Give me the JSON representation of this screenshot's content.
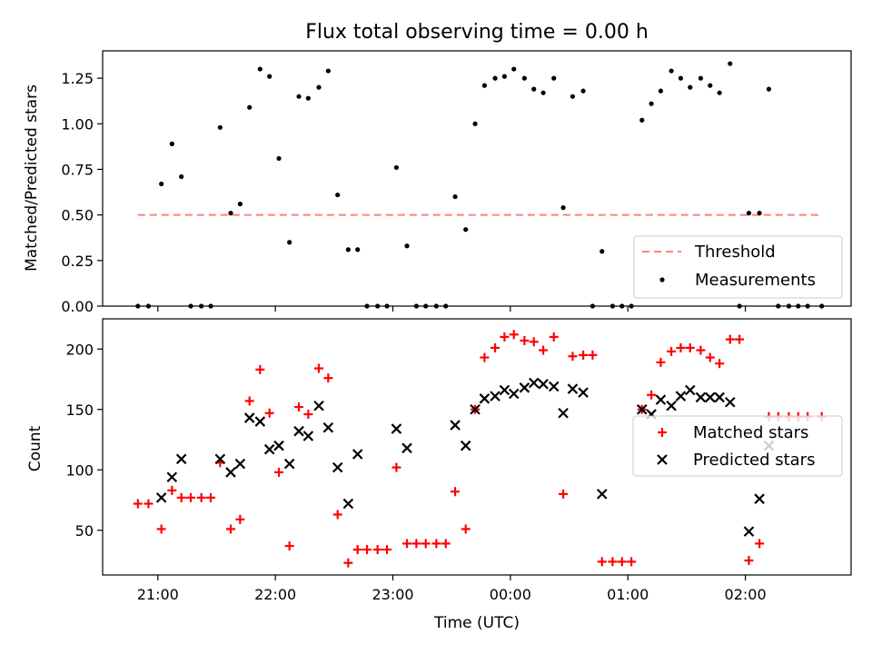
{
  "title": "Flux total observing time = 0.00 h",
  "xlabel": "Time (UTC)",
  "x_ticks": [
    "21:00",
    "22:00",
    "23:00",
    "00:00",
    "01:00",
    "02:00"
  ],
  "x_ticks_hours": [
    21,
    22,
    23,
    24,
    25,
    26
  ],
  "xlim_hours": [
    20.53,
    26.9
  ],
  "colors": {
    "threshold": "#ff7f7f",
    "measurement": "#000000",
    "matched": "#ff0000",
    "predicted": "#000000"
  },
  "chart_data": [
    {
      "type": "scatter",
      "panel": "top",
      "ylabel": "Matched/Predicted stars",
      "ylim": [
        0,
        1.4
      ],
      "y_ticks": [
        "0.00",
        "0.25",
        "0.50",
        "0.75",
        "1.00",
        "1.25"
      ],
      "y_tick_values": [
        0,
        0.25,
        0.5,
        0.75,
        1.0,
        1.25
      ],
      "legend": {
        "position": "lower right",
        "entries": [
          "Threshold",
          "Measurements"
        ]
      },
      "threshold": {
        "name": "Threshold",
        "value": 0.5,
        "x_start": 20.83,
        "x_end": 26.65
      },
      "series": [
        {
          "name": "Measurements",
          "points": [
            [
              20.83,
              0
            ],
            [
              20.92,
              0
            ],
            [
              21.03,
              0.67
            ],
            [
              21.12,
              0.89
            ],
            [
              21.2,
              0.71
            ],
            [
              21.28,
              0
            ],
            [
              21.37,
              0
            ],
            [
              21.45,
              0
            ],
            [
              21.53,
              0.98
            ],
            [
              21.62,
              0.51
            ],
            [
              21.7,
              0.56
            ],
            [
              21.78,
              1.09
            ],
            [
              21.87,
              1.3
            ],
            [
              21.95,
              1.26
            ],
            [
              22.03,
              0.81
            ],
            [
              22.12,
              0.35
            ],
            [
              22.2,
              1.15
            ],
            [
              22.28,
              1.14
            ],
            [
              22.37,
              1.2
            ],
            [
              22.45,
              1.29
            ],
            [
              22.53,
              0.61
            ],
            [
              22.62,
              0.31
            ],
            [
              22.7,
              0.31
            ],
            [
              22.78,
              0
            ],
            [
              22.87,
              0
            ],
            [
              22.95,
              0
            ],
            [
              23.03,
              0.76
            ],
            [
              23.12,
              0.33
            ],
            [
              23.2,
              0
            ],
            [
              23.28,
              0
            ],
            [
              23.37,
              0
            ],
            [
              23.45,
              0
            ],
            [
              23.53,
              0.6
            ],
            [
              23.62,
              0.42
            ],
            [
              23.7,
              1.0
            ],
            [
              23.78,
              1.21
            ],
            [
              23.87,
              1.25
            ],
            [
              23.95,
              1.26
            ],
            [
              24.03,
              1.3
            ],
            [
              24.12,
              1.25
            ],
            [
              24.2,
              1.19
            ],
            [
              24.28,
              1.17
            ],
            [
              24.37,
              1.25
            ],
            [
              24.45,
              0.54
            ],
            [
              24.53,
              1.15
            ],
            [
              24.62,
              1.18
            ],
            [
              24.7,
              0
            ],
            [
              24.78,
              0.3
            ],
            [
              24.87,
              0
            ],
            [
              24.95,
              0
            ],
            [
              25.03,
              0
            ],
            [
              25.12,
              1.02
            ],
            [
              25.2,
              1.11
            ],
            [
              25.28,
              1.18
            ],
            [
              25.37,
              1.29
            ],
            [
              25.45,
              1.25
            ],
            [
              25.53,
              1.2
            ],
            [
              25.62,
              1.25
            ],
            [
              25.7,
              1.21
            ],
            [
              25.78,
              1.17
            ],
            [
              25.87,
              1.33
            ],
            [
              25.95,
              0
            ],
            [
              26.03,
              0.51
            ],
            [
              26.12,
              0.51
            ],
            [
              26.2,
              1.19
            ],
            [
              26.28,
              0
            ],
            [
              26.37,
              0
            ],
            [
              26.45,
              0
            ],
            [
              26.53,
              0
            ],
            [
              26.65,
              0
            ]
          ]
        }
      ]
    },
    {
      "type": "scatter",
      "panel": "bottom",
      "ylabel": "Count",
      "ylim": [
        13,
        225
      ],
      "y_ticks": [
        "50",
        "100",
        "150",
        "200"
      ],
      "y_tick_values": [
        50,
        100,
        150,
        200
      ],
      "legend": {
        "position": "center right",
        "entries": [
          "Matched stars",
          "Predicted stars"
        ]
      },
      "series": [
        {
          "name": "Matched stars",
          "points": [
            [
              20.83,
              72
            ],
            [
              20.92,
              72
            ],
            [
              21.03,
              51
            ],
            [
              21.12,
              83
            ],
            [
              21.2,
              77
            ],
            [
              21.28,
              77
            ],
            [
              21.37,
              77
            ],
            [
              21.45,
              77
            ],
            [
              21.53,
              106
            ],
            [
              21.62,
              51
            ],
            [
              21.7,
              59
            ],
            [
              21.78,
              157
            ],
            [
              21.87,
              183
            ],
            [
              21.95,
              147
            ],
            [
              22.03,
              98
            ],
            [
              22.12,
              37
            ],
            [
              22.2,
              152
            ],
            [
              22.28,
              146
            ],
            [
              22.37,
              184
            ],
            [
              22.45,
              176
            ],
            [
              22.53,
              63
            ],
            [
              22.62,
              23
            ],
            [
              22.7,
              34
            ],
            [
              22.78,
              34
            ],
            [
              22.87,
              34
            ],
            [
              22.95,
              34
            ],
            [
              23.03,
              102
            ],
            [
              23.12,
              39
            ],
            [
              23.2,
              39
            ],
            [
              23.28,
              39
            ],
            [
              23.37,
              39
            ],
            [
              23.45,
              39
            ],
            [
              23.53,
              82
            ],
            [
              23.62,
              51
            ],
            [
              23.7,
              150
            ],
            [
              23.78,
              193
            ],
            [
              23.87,
              201
            ],
            [
              23.95,
              210
            ],
            [
              24.03,
              212
            ],
            [
              24.12,
              207
            ],
            [
              24.2,
              206
            ],
            [
              24.28,
              199
            ],
            [
              24.37,
              210
            ],
            [
              24.45,
              80
            ],
            [
              24.53,
              194
            ],
            [
              24.62,
              195
            ],
            [
              24.7,
              195
            ],
            [
              24.78,
              24
            ],
            [
              24.87,
              24
            ],
            [
              24.95,
              24
            ],
            [
              25.03,
              24
            ],
            [
              25.12,
              150
            ],
            [
              25.2,
              162
            ],
            [
              25.28,
              189
            ],
            [
              25.37,
              198
            ],
            [
              25.45,
              201
            ],
            [
              25.53,
              201
            ],
            [
              25.62,
              199
            ],
            [
              25.7,
              193
            ],
            [
              25.78,
              188
            ],
            [
              25.87,
              208
            ],
            [
              25.95,
              208
            ],
            [
              26.03,
              25
            ],
            [
              26.12,
              39
            ],
            [
              26.2,
              144
            ],
            [
              26.28,
              144
            ],
            [
              26.37,
              144
            ],
            [
              26.45,
              144
            ],
            [
              26.53,
              144
            ],
            [
              26.65,
              144
            ]
          ]
        },
        {
          "name": "Predicted stars",
          "points": [
            [
              21.03,
              77
            ],
            [
              21.12,
              94
            ],
            [
              21.2,
              109
            ],
            [
              21.53,
              109
            ],
            [
              21.62,
              98
            ],
            [
              21.7,
              105
            ],
            [
              21.78,
              143
            ],
            [
              21.87,
              140
            ],
            [
              21.95,
              117
            ],
            [
              22.03,
              120
            ],
            [
              22.12,
              105
            ],
            [
              22.2,
              132
            ],
            [
              22.28,
              128
            ],
            [
              22.37,
              153
            ],
            [
              22.45,
              135
            ],
            [
              22.53,
              102
            ],
            [
              22.62,
              72
            ],
            [
              22.7,
              113
            ],
            [
              23.03,
              134
            ],
            [
              23.12,
              118
            ],
            [
              23.53,
              137
            ],
            [
              23.62,
              120
            ],
            [
              23.7,
              150
            ],
            [
              23.78,
              159
            ],
            [
              23.87,
              161
            ],
            [
              23.95,
              166
            ],
            [
              24.03,
              163
            ],
            [
              24.12,
              168
            ],
            [
              24.2,
              172
            ],
            [
              24.28,
              171
            ],
            [
              24.37,
              169
            ],
            [
              24.45,
              147
            ],
            [
              24.53,
              167
            ],
            [
              24.62,
              164
            ],
            [
              24.78,
              80
            ],
            [
              25.12,
              150
            ],
            [
              25.2,
              146
            ],
            [
              25.28,
              158
            ],
            [
              25.37,
              153
            ],
            [
              25.45,
              161
            ],
            [
              25.53,
              166
            ],
            [
              25.62,
              160
            ],
            [
              25.7,
              160
            ],
            [
              25.78,
              160
            ],
            [
              25.87,
              156
            ],
            [
              26.03,
              49
            ],
            [
              26.12,
              76
            ],
            [
              26.2,
              120
            ]
          ]
        }
      ]
    }
  ]
}
